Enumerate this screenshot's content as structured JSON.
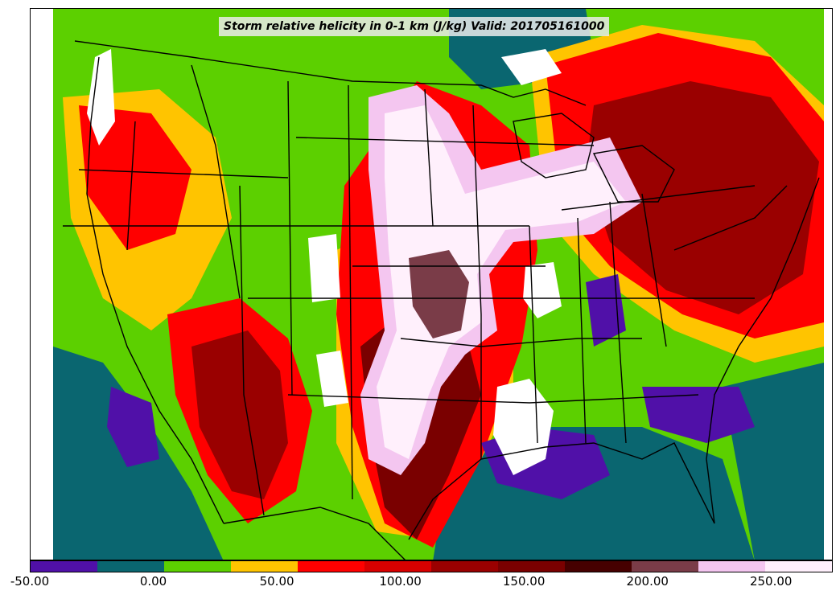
{
  "map": {
    "title": "Storm relative helicity in 0-1 km (J/kg) Valid: 201705161000"
  },
  "colorbar": {
    "colors": [
      "#5010a8",
      "#0a6670",
      "#5cd000",
      "#ffc400",
      "#ff0000",
      "#d80000",
      "#9a0000",
      "#7a0000",
      "#460000",
      "#7a3c48",
      "#f4c6f0",
      "#fff0fc"
    ],
    "range": [
      -50,
      275
    ],
    "tick_labels": [
      "-50.00",
      "0.00",
      "50.00",
      "100.00",
      "150.00",
      "200.00",
      "250.00"
    ]
  },
  "legend_colors": {
    "land_base": "#5cd000",
    "water_base": "#0a6670",
    "border": "#000000"
  }
}
